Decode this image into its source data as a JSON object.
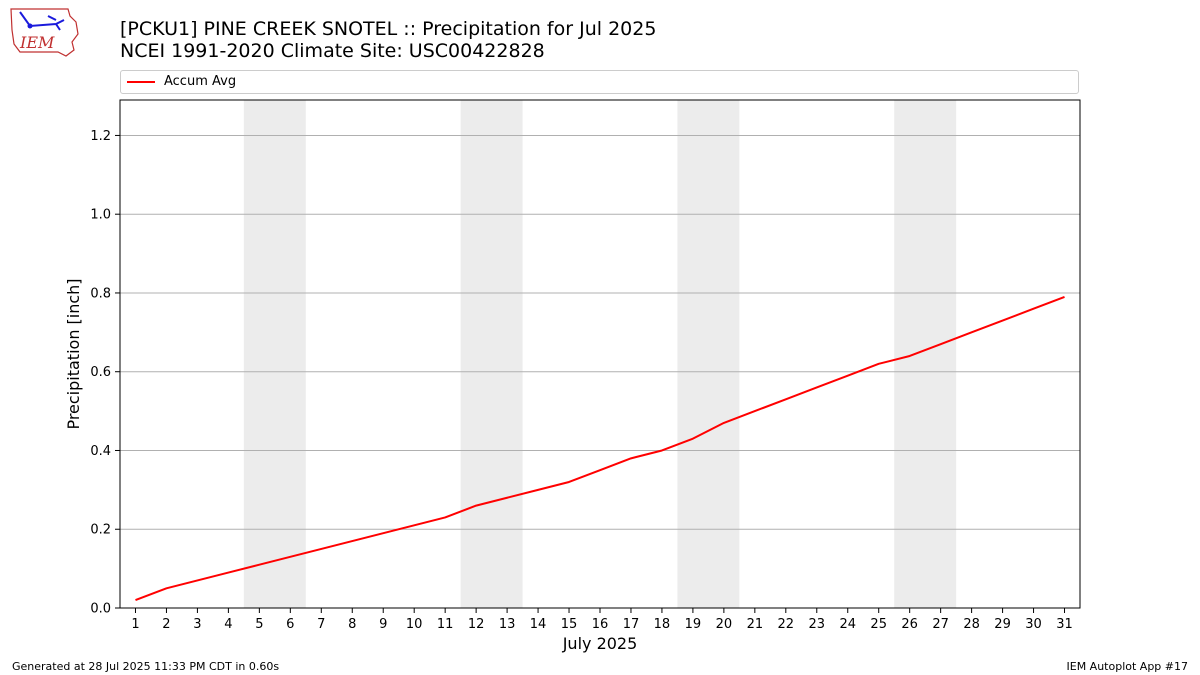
{
  "logo": {
    "text": "IEM"
  },
  "title_line1": "[PCKU1] PINE CREEK SNOTEL :: Precipitation for Jul 2025",
  "title_line2": "NCEI 1991-2020 Climate Site: USC00422828",
  "footer": {
    "left": "Generated at 28 Jul 2025 11:33 PM CDT in 0.60s",
    "right": "IEM Autoplot App #17"
  },
  "colors": {
    "line": "#ff0000",
    "weekend_band": "#ececec",
    "grid": "#b0b0b0"
  },
  "chart_data": {
    "type": "line",
    "xlabel": "July 2025",
    "ylabel": "Precipitation [inch]",
    "x": [
      1,
      2,
      3,
      4,
      5,
      6,
      7,
      8,
      9,
      10,
      11,
      12,
      13,
      14,
      15,
      16,
      17,
      18,
      19,
      20,
      21,
      22,
      23,
      24,
      25,
      26,
      27,
      28,
      29,
      30,
      31
    ],
    "xlim": [
      0.5,
      31.5
    ],
    "ylim": [
      0,
      1.29
    ],
    "yticks": [
      0.0,
      0.2,
      0.4,
      0.6,
      0.8,
      1.0,
      1.2
    ],
    "ytick_labels": [
      "0.0",
      "0.2",
      "0.4",
      "0.6",
      "0.8",
      "1.0",
      "1.2"
    ],
    "grid": "horizontal",
    "legend": "top",
    "shaded_days": [
      [
        5,
        6
      ],
      [
        12,
        13
      ],
      [
        19,
        20
      ],
      [
        26,
        27
      ]
    ],
    "series": [
      {
        "name": "Accum Avg",
        "color": "#ff0000",
        "values": [
          0.02,
          0.05,
          0.07,
          0.09,
          0.11,
          0.13,
          0.15,
          0.17,
          0.19,
          0.21,
          0.23,
          0.26,
          0.28,
          0.3,
          0.32,
          0.35,
          0.38,
          0.4,
          0.43,
          0.47,
          0.5,
          0.53,
          0.56,
          0.59,
          0.62,
          0.64,
          0.67,
          0.7,
          0.73,
          0.76,
          0.79
        ]
      }
    ]
  }
}
